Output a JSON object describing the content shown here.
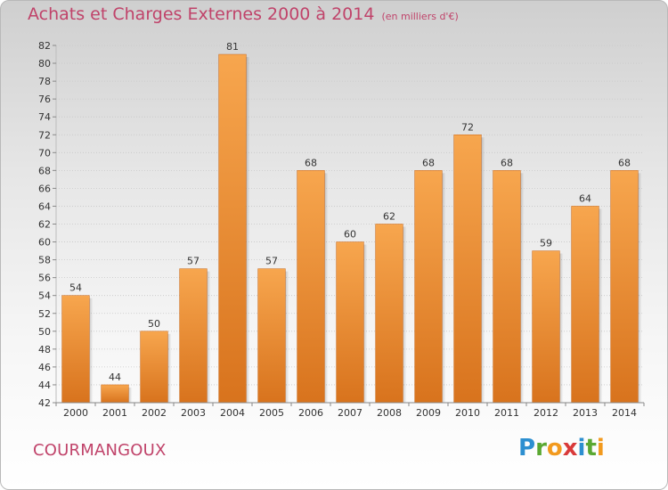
{
  "header": {
    "title": "Achats et Charges Externes 2000 à 2014",
    "unit": "(en milliers d'€)"
  },
  "footer": {
    "commune": "COURMANGOUX",
    "logo": {
      "letters": [
        "P",
        "r",
        "o",
        "x",
        "i",
        "t",
        "i"
      ],
      "colors": [
        "#2d8fd0",
        "#5aa832",
        "#f29a1e",
        "#d93a3a",
        "#2d8fd0",
        "#5aa832",
        "#f29a1e"
      ]
    }
  },
  "chart_data": {
    "type": "bar",
    "categories": [
      "2000",
      "2001",
      "2002",
      "2003",
      "2004",
      "2005",
      "2006",
      "2007",
      "2008",
      "2009",
      "2010",
      "2011",
      "2012",
      "2013",
      "2014"
    ],
    "values": [
      54,
      44,
      50,
      57,
      81,
      57,
      68,
      60,
      62,
      68,
      72,
      68,
      59,
      64,
      68
    ],
    "ylim": [
      42,
      82
    ],
    "yticks": [
      42,
      44,
      46,
      48,
      50,
      52,
      54,
      56,
      58,
      60,
      62,
      64,
      66,
      68,
      70,
      72,
      74,
      76,
      78,
      80,
      82
    ],
    "grid": true,
    "bar_color_top": "#f7a64e",
    "bar_color_bottom": "#d8731d"
  }
}
